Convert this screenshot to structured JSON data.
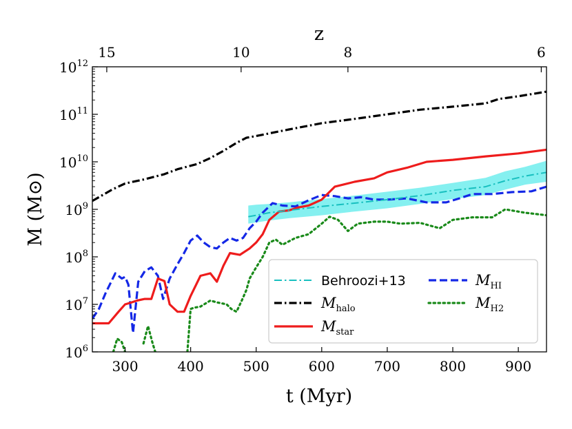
{
  "chart_data": {
    "type": "line",
    "xlabel": "t (Myr)",
    "ylabel": "M (M⊙)",
    "top_axis_label": "z",
    "xlim": [
      250,
      943
    ],
    "ylim": [
      1000000.0,
      1000000000000.0
    ],
    "yscale": "log",
    "x_ticks": [
      300,
      400,
      500,
      600,
      700,
      800,
      900
    ],
    "x_tick_labels": [
      "300",
      "400",
      "500",
      "600",
      "700",
      "800",
      "900"
    ],
    "y_ticks": [
      1000000.0,
      10000000.0,
      100000000.0,
      1000000000.0,
      10000000000.0,
      100000000000.0,
      1000000000000.0
    ],
    "y_tick_labels": [
      {
        "base": "10",
        "exp": "6"
      },
      {
        "base": "10",
        "exp": "7"
      },
      {
        "base": "10",
        "exp": "8"
      },
      {
        "base": "10",
        "exp": "9"
      },
      {
        "base": "10",
        "exp": "10"
      },
      {
        "base": "10",
        "exp": "11"
      },
      {
        "base": "10",
        "exp": "12"
      }
    ],
    "top_ticks": [
      {
        "label": "15",
        "t": 272
      },
      {
        "label": "10",
        "t": 477
      },
      {
        "label": "8",
        "t": 640
      },
      {
        "label": "6",
        "t": 935
      }
    ],
    "legend_position": "lower-right",
    "series": [
      {
        "name": "M_halo",
        "legend_label": "M",
        "legend_sub": "halo",
        "color": "#000000",
        "style": "dashdot",
        "x": [
          250,
          280,
          300,
          330,
          360,
          380,
          410,
          430,
          450,
          470,
          485,
          500,
          550,
          600,
          650,
          700,
          750,
          800,
          850,
          870,
          900,
          943
        ],
        "y": [
          1500000000.0,
          2600000000.0,
          3500000000.0,
          4300000000.0,
          5500000000.0,
          7000000000.0,
          9000000000.0,
          12000000000.0,
          17000000000.0,
          25000000000.0,
          32000000000.0,
          35000000000.0,
          48000000000.0,
          65000000000.0,
          80000000000.0,
          100000000000.0,
          125000000000.0,
          145000000000.0,
          170000000000.0,
          210000000000.0,
          240000000000.0,
          300000000000.0
        ]
      },
      {
        "name": "M_star",
        "legend_label": "M",
        "legend_sub": "star",
        "color": "#ee1c1c",
        "style": "solid",
        "x": [
          250,
          262,
          275,
          290,
          300,
          310,
          318,
          330,
          340,
          350,
          360,
          368,
          380,
          390,
          400,
          415,
          430,
          440,
          450,
          460,
          475,
          490,
          500,
          510,
          520,
          535,
          550,
          565,
          580,
          600,
          620,
          650,
          680,
          700,
          730,
          760,
          800,
          850,
          900,
          943
        ],
        "y": [
          4000000.0,
          4000000.0,
          4000000.0,
          7000000.0,
          10000000.0,
          11000000.0,
          12000000.0,
          13000000.0,
          13000000.0,
          35000000.0,
          31000000.0,
          10000000.0,
          7000000.0,
          7000000.0,
          15000000.0,
          40000000.0,
          45000000.0,
          30000000.0,
          65000000.0,
          120000000.0,
          110000000.0,
          150000000.0,
          200000000.0,
          300000000.0,
          600000000.0,
          900000000.0,
          950000000.0,
          1100000000.0,
          1200000000.0,
          1600000000.0,
          3000000000.0,
          3800000000.0,
          4500000000.0,
          6000000000.0,
          7500000000.0,
          10000000000.0,
          11000000000.0,
          13000000000.0,
          15000000000.0,
          18000000000.0
        ]
      },
      {
        "name": "M_HI",
        "legend_label": "M",
        "legend_sub": "HI",
        "color": "#1428e6",
        "style": "dashed",
        "x": [
          250,
          260,
          270,
          285,
          295,
          300,
          305,
          312,
          320,
          330,
          340,
          350,
          358,
          368,
          380,
          390,
          400,
          410,
          420,
          430,
          440,
          450,
          460,
          470,
          480,
          490,
          500,
          510,
          525,
          540,
          560,
          580,
          600,
          620,
          640,
          660,
          680,
          700,
          730,
          760,
          790,
          810,
          830,
          860,
          890,
          920,
          943
        ],
        "y": [
          5000000.0,
          8000000.0,
          17000000.0,
          45000000.0,
          35000000.0,
          38000000.0,
          26000000.0,
          2500000.0,
          30000000.0,
          50000000.0,
          60000000.0,
          40000000.0,
          13000000.0,
          35000000.0,
          70000000.0,
          120000000.0,
          220000000.0,
          280000000.0,
          200000000.0,
          160000000.0,
          150000000.0,
          200000000.0,
          250000000.0,
          220000000.0,
          250000000.0,
          400000000.0,
          550000000.0,
          850000000.0,
          1350000000.0,
          1200000000.0,
          1150000000.0,
          1550000000.0,
          2000000000.0,
          1900000000.0,
          1700000000.0,
          1800000000.0,
          1600000000.0,
          1600000000.0,
          1700000000.0,
          1400000000.0,
          1400000000.0,
          1700000000.0,
          2100000000.0,
          2100000000.0,
          2300000000.0,
          2400000000.0,
          3000000000.0
        ]
      },
      {
        "name": "M_H2",
        "legend_label": "M",
        "legend_sub": "H2",
        "color": "#1a8a1a",
        "style": "dotted",
        "segments": [
          {
            "x": [
              282,
              288,
              295,
              300
            ],
            "y": [
              1000000.0,
              1900000.0,
              1600000.0,
              1000000.0
            ]
          },
          {
            "x": [
              328,
              335,
              342,
              346
            ],
            "y": [
              1500000.0,
              3500000.0,
              1500000.0,
              1000000.0
            ]
          },
          {
            "x": [
              395,
              400,
              405,
              415,
              430,
              440,
              455,
              462,
              470,
              478,
              485,
              490,
              500,
              510,
              520,
              530,
              540,
              560,
              580,
              600,
              612,
              625,
              640,
              655,
              680,
              700,
              720,
              750,
              780,
              800,
              830,
              860,
              880,
              910,
              943
            ],
            "y": [
              1000000.0,
              8000000.0,
              8500000.0,
              9000000.0,
              12000000.0,
              11000000.0,
              10000000.0,
              8000000.0,
              7000000.0,
              12000000.0,
              20000000.0,
              35000000.0,
              60000000.0,
              100000000.0,
              200000000.0,
              230000000.0,
              180000000.0,
              250000000.0,
              300000000.0,
              500000000.0,
              700000000.0,
              600000000.0,
              350000000.0,
              500000000.0,
              550000000.0,
              550000000.0,
              500000000.0,
              520000000.0,
              400000000.0,
              600000000.0,
              680000000.0,
              680000000.0,
              1000000000.0,
              850000000.0,
              750000000.0
            ]
          }
        ]
      },
      {
        "name": "Behroozi+13",
        "legend_label": "Behroozi+13",
        "color": "#17bfbf",
        "band_color": "#33e6e6",
        "style": "dashdot",
        "x": [
          488,
          500,
          520,
          550,
          600,
          650,
          700,
          750,
          800,
          850,
          880,
          910,
          943
        ],
        "y": [
          700000000.0,
          750000000.0,
          850000000.0,
          950000000.0,
          1150000000.0,
          1350000000.0,
          1600000000.0,
          1950000000.0,
          2500000000.0,
          3000000000.0,
          4000000000.0,
          5000000000.0,
          6000000000.0
        ],
        "band_low": [
          500000000.0,
          530000000.0,
          580000000.0,
          650000000.0,
          750000000.0,
          900000000.0,
          1050000000.0,
          1300000000.0,
          1650000000.0,
          2000000000.0,
          2600000000.0,
          3300000000.0,
          3800000000.0
        ],
        "band_high": [
          1200000000.0,
          1250000000.0,
          1300000000.0,
          1400000000.0,
          1650000000.0,
          1950000000.0,
          2350000000.0,
          2850000000.0,
          3600000000.0,
          4600000000.0,
          6300000000.0,
          7800000000.0,
          10500000000.0
        ]
      }
    ]
  }
}
